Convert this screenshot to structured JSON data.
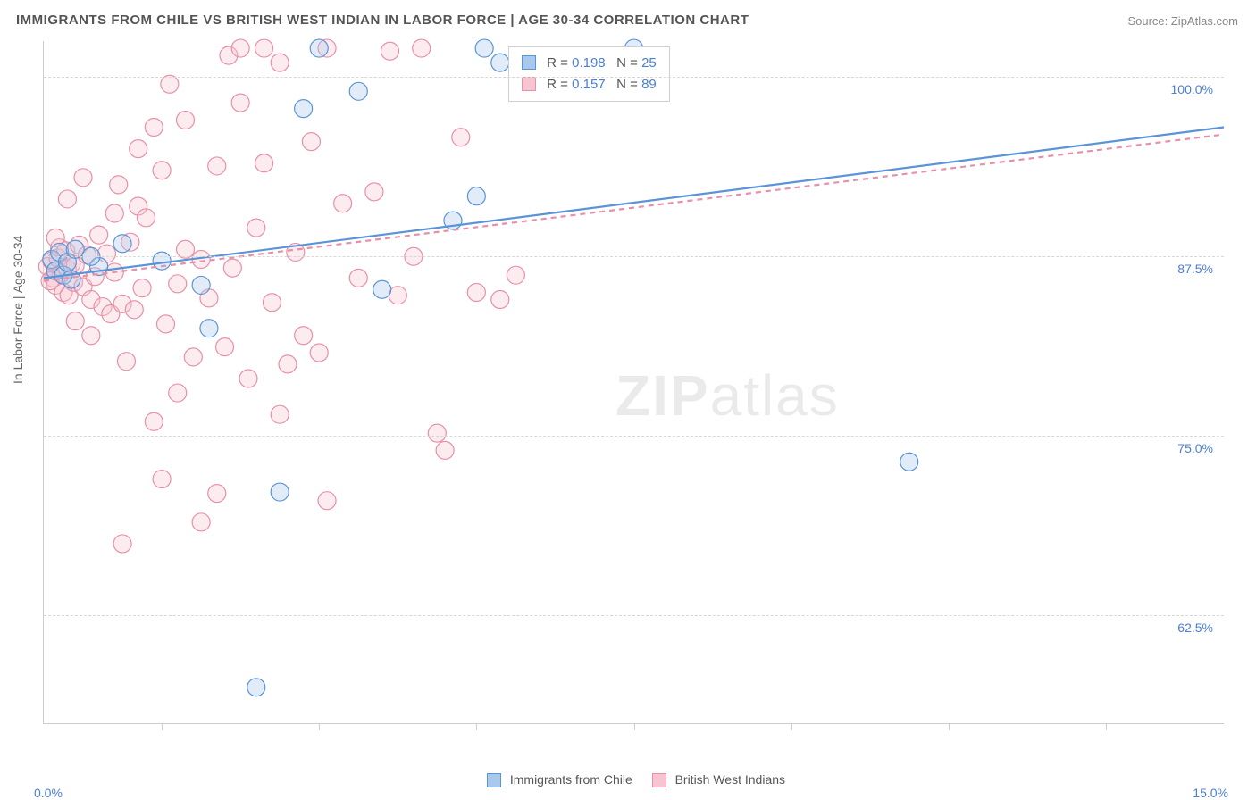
{
  "title": "IMMIGRANTS FROM CHILE VS BRITISH WEST INDIAN IN LABOR FORCE | AGE 30-34 CORRELATION CHART",
  "source": "Source: ZipAtlas.com",
  "ylabel": "In Labor Force | Age 30-34",
  "watermark_bold": "ZIP",
  "watermark_light": "atlas",
  "chart": {
    "type": "scatter-with-regression",
    "background_color": "#ffffff",
    "grid_color": "#d8d8d8",
    "axis_color": "#cccccc",
    "value_text_color": "#4a7fd8",
    "label_text_color": "#666666",
    "title_text_color": "#555555",
    "title_fontsize": 15,
    "label_fontsize": 14,
    "xlim": [
      0.0,
      15.0
    ],
    "ylim": [
      55.0,
      102.5
    ],
    "yticks": [
      62.5,
      75.0,
      87.5,
      100.0
    ],
    "ytick_labels": [
      "62.5%",
      "75.0%",
      "87.5%",
      "100.0%"
    ],
    "x_min_label": "0.0%",
    "x_max_label": "15.0%",
    "xticks_minor": [
      1.5,
      3.5,
      5.5,
      7.5,
      9.5,
      11.5,
      13.5
    ],
    "marker_radius": 10,
    "marker_stroke_width": 1.2,
    "marker_fill_opacity": 0.35,
    "regression_line_width": 2.2,
    "series": [
      {
        "key": "chile",
        "label": "Immigrants from Chile",
        "color_stroke": "#5b94d6",
        "color_fill": "#a9c9ec",
        "R": "0.198",
        "N": "25",
        "regression": {
          "x1": 0.0,
          "y1": 86.0,
          "x2": 15.0,
          "y2": 96.5,
          "dash": false
        },
        "points": [
          [
            0.1,
            87.3
          ],
          [
            0.15,
            86.5
          ],
          [
            0.2,
            87.8
          ],
          [
            0.25,
            86.2
          ],
          [
            0.3,
            87.1
          ],
          [
            0.35,
            85.9
          ],
          [
            0.4,
            88.0
          ],
          [
            0.7,
            86.8
          ],
          [
            1.0,
            88.4
          ],
          [
            1.5,
            87.2
          ],
          [
            2.0,
            85.5
          ],
          [
            3.0,
            71.1
          ],
          [
            3.3,
            97.8
          ],
          [
            3.5,
            102.0
          ],
          [
            4.0,
            99.0
          ],
          [
            4.3,
            85.2
          ],
          [
            2.1,
            82.5
          ],
          [
            2.7,
            57.5
          ],
          [
            5.5,
            91.7
          ],
          [
            5.2,
            90.0
          ],
          [
            5.6,
            102.0
          ],
          [
            5.8,
            101.0
          ],
          [
            7.5,
            102.0
          ],
          [
            11.0,
            73.2
          ],
          [
            0.6,
            87.5
          ]
        ]
      },
      {
        "key": "bwi",
        "label": "British West Indians",
        "color_stroke": "#e890a7",
        "color_fill": "#f6c5d1",
        "R": "0.157",
        "N": "89",
        "regression": {
          "x1": 0.0,
          "y1": 85.8,
          "x2": 15.0,
          "y2": 96.0,
          "dash": true
        },
        "points": [
          [
            0.05,
            86.8
          ],
          [
            0.1,
            87.2
          ],
          [
            0.12,
            86.0
          ],
          [
            0.15,
            85.5
          ],
          [
            0.18,
            87.4
          ],
          [
            0.2,
            88.1
          ],
          [
            0.22,
            86.3
          ],
          [
            0.25,
            85.0
          ],
          [
            0.28,
            87.9
          ],
          [
            0.3,
            86.6
          ],
          [
            0.32,
            84.8
          ],
          [
            0.35,
            87.0
          ],
          [
            0.38,
            85.7
          ],
          [
            0.4,
            86.9
          ],
          [
            0.45,
            88.3
          ],
          [
            0.5,
            85.4
          ],
          [
            0.55,
            87.6
          ],
          [
            0.6,
            84.5
          ],
          [
            0.65,
            86.1
          ],
          [
            0.7,
            89.0
          ],
          [
            0.75,
            84.0
          ],
          [
            0.8,
            87.7
          ],
          [
            0.85,
            83.5
          ],
          [
            0.9,
            86.4
          ],
          [
            0.95,
            92.5
          ],
          [
            1.0,
            84.2
          ],
          [
            1.05,
            80.2
          ],
          [
            1.1,
            88.5
          ],
          [
            1.15,
            83.8
          ],
          [
            1.2,
            91.0
          ],
          [
            1.25,
            85.3
          ],
          [
            1.3,
            90.2
          ],
          [
            1.4,
            76.0
          ],
          [
            1.5,
            93.5
          ],
          [
            1.55,
            82.8
          ],
          [
            1.6,
            99.5
          ],
          [
            1.7,
            85.6
          ],
          [
            1.8,
            97.0
          ],
          [
            1.9,
            80.5
          ],
          [
            2.0,
            87.3
          ],
          [
            2.1,
            84.6
          ],
          [
            2.2,
            93.8
          ],
          [
            2.3,
            81.2
          ],
          [
            2.35,
            101.5
          ],
          [
            2.4,
            86.7
          ],
          [
            2.5,
            98.2
          ],
          [
            2.5,
            102.0
          ],
          [
            2.6,
            79.0
          ],
          [
            2.7,
            89.5
          ],
          [
            2.8,
            102.0
          ],
          [
            2.9,
            84.3
          ],
          [
            3.0,
            101.0
          ],
          [
            3.1,
            80.0
          ],
          [
            3.2,
            87.8
          ],
          [
            3.3,
            82.0
          ],
          [
            3.4,
            95.5
          ],
          [
            3.5,
            80.8
          ],
          [
            3.6,
            70.5
          ],
          [
            3.8,
            91.2
          ],
          [
            4.0,
            86.0
          ],
          [
            4.2,
            92.0
          ],
          [
            4.4,
            101.8
          ],
          [
            4.5,
            84.8
          ],
          [
            4.7,
            87.5
          ],
          [
            5.0,
            75.2
          ],
          [
            5.1,
            74.0
          ],
          [
            5.3,
            95.8
          ],
          [
            5.5,
            85.0
          ],
          [
            5.8,
            84.5
          ],
          [
            6.0,
            86.2
          ],
          [
            1.0,
            67.5
          ],
          [
            1.5,
            72.0
          ],
          [
            2.0,
            69.0
          ],
          [
            3.0,
            76.5
          ],
          [
            1.2,
            95.0
          ],
          [
            1.4,
            96.5
          ],
          [
            0.5,
            93.0
          ],
          [
            0.3,
            91.5
          ],
          [
            2.2,
            71.0
          ],
          [
            0.9,
            90.5
          ],
          [
            1.7,
            78.0
          ],
          [
            0.4,
            83.0
          ],
          [
            0.6,
            82.0
          ],
          [
            2.8,
            94.0
          ],
          [
            1.8,
            88.0
          ],
          [
            4.8,
            102.0
          ],
          [
            3.6,
            102.0
          ],
          [
            0.15,
            88.8
          ],
          [
            0.08,
            85.8
          ]
        ]
      }
    ]
  }
}
